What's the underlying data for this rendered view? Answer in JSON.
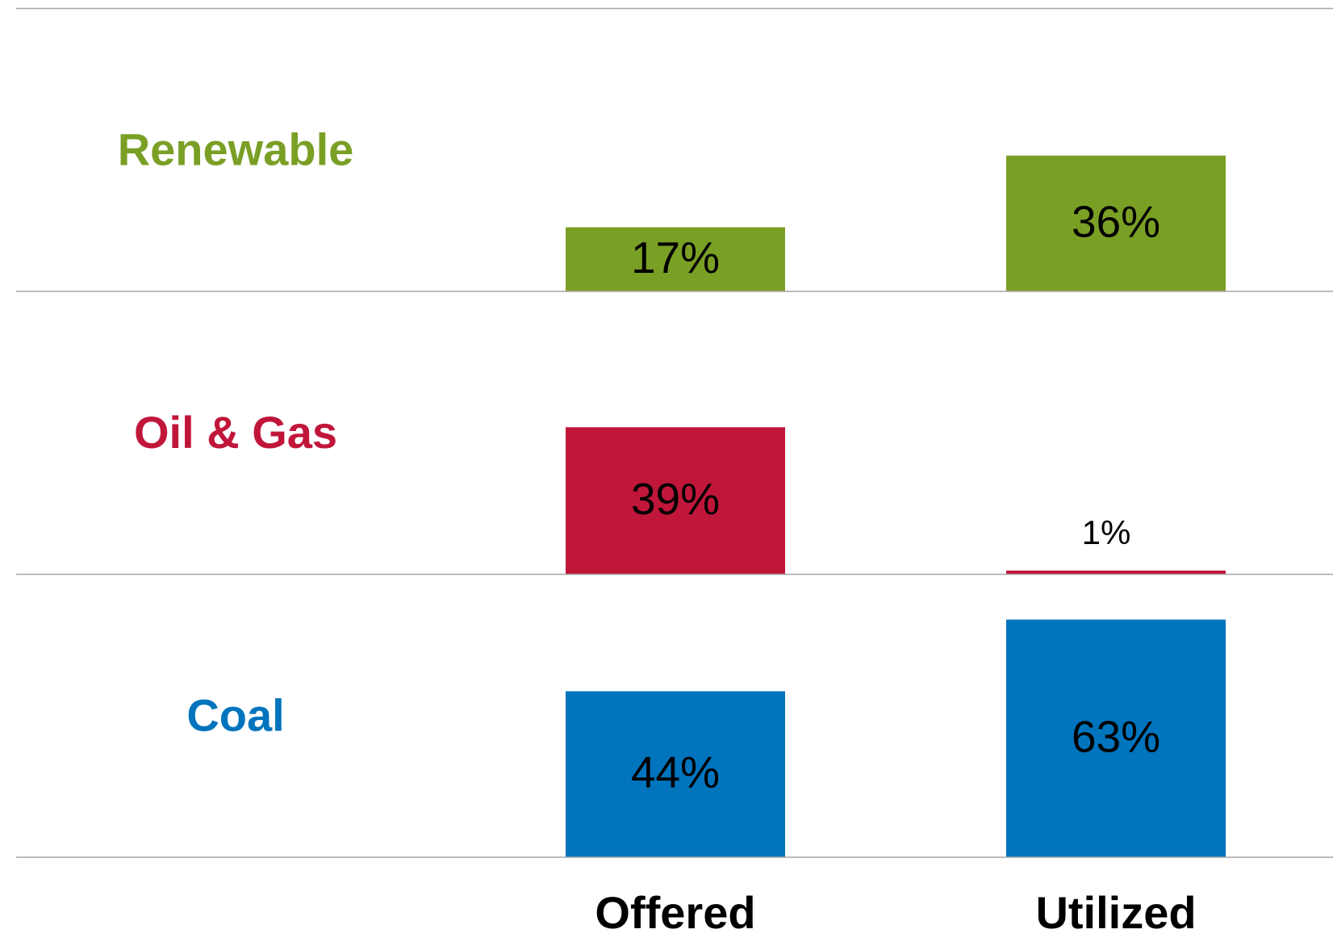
{
  "chart_data": {
    "type": "bar",
    "categories": [
      "Offered",
      "Utilized"
    ],
    "ylim": [
      0,
      75
    ],
    "series": [
      {
        "name": "Renewable",
        "color": "#7a9f25",
        "values": [
          17,
          36
        ],
        "value_labels": [
          "17%",
          "36%"
        ]
      },
      {
        "name": "Oil & Gas",
        "color": "#c0163a",
        "values": [
          39,
          1
        ],
        "value_labels": [
          "39%",
          "1%"
        ]
      },
      {
        "name": "Coal",
        "color": "#0074bd",
        "values": [
          44,
          63
        ],
        "value_labels": [
          "44%",
          "63%"
        ]
      }
    ]
  }
}
